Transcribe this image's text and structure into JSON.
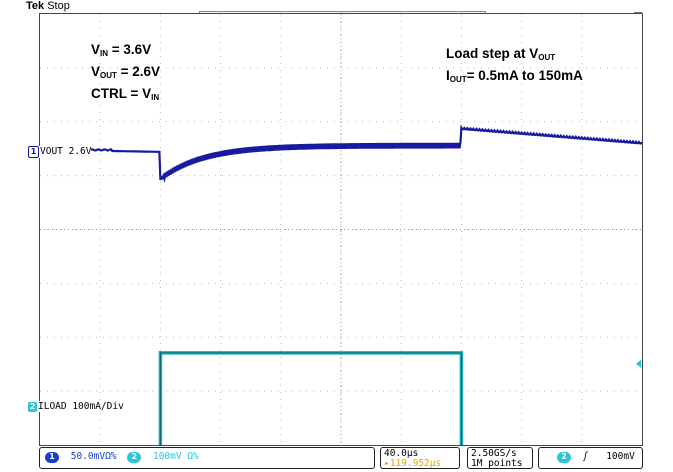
{
  "header": {
    "brand": "Tek",
    "acq_status": "Stop"
  },
  "annotations": {
    "vin_label": "V",
    "vin_sub": "IN",
    "vin_value": " = 3.6V",
    "vout_label": "V",
    "vout_sub": "OUT",
    "vout_value": " = 2.6V",
    "ctrl_label": "CTRL = V",
    "ctrl_sub": "IN",
    "step_label": "Load step at V",
    "step_sub": "OUT",
    "iout_label": "I",
    "iout_sub": "OUT",
    "iout_value": "= 0.5mA to 150mA"
  },
  "channels": {
    "ch1": {
      "num": "1",
      "label": "VOUT 2.6V",
      "color": "#1a1aa0"
    },
    "ch2": {
      "num": "2",
      "label": "ILOAD 100mA/Div",
      "color": "#1aa8b8"
    }
  },
  "statusbar": {
    "ch1_num": "1",
    "ch1_scale": "50.0mV",
    "ch1_coupling": "Ω%",
    "ch2_num": "2",
    "ch2_scale": "100mV",
    "ch2_coupling": "Ω%",
    "timebase": "40.0μs",
    "trigger_pos": "▸119.952μs",
    "sample_rate": "2.50GS/s",
    "record_length": "1M points",
    "trig_ch": "2",
    "trig_slope": "ʃ",
    "trig_level": "100mV"
  },
  "chart_data": {
    "type": "line",
    "title": "",
    "grid": true,
    "divisions": {
      "x": 10,
      "y": 8
    },
    "series": [
      {
        "name": "VOUT 2.6V",
        "color": "#1a1aa0",
        "description_points": [
          [
            0,
            0.0
          ],
          [
            1.2,
            0.0
          ],
          [
            2.0,
            -0.05
          ],
          [
            2.0,
            -0.4
          ],
          [
            2.2,
            -0.55
          ],
          [
            2.6,
            -0.3
          ],
          [
            3.0,
            -0.1
          ],
          [
            3.5,
            0.05
          ],
          [
            4.0,
            0.1
          ],
          [
            7.0,
            0.1
          ],
          [
            7.0,
            0.42
          ],
          [
            10.0,
            0.15
          ]
        ]
      },
      {
        "name": "ILOAD 100mA/Div",
        "color": "#1aa8b8",
        "description_points": [
          [
            0,
            -4.3
          ],
          [
            2.0,
            -4.3
          ],
          [
            2.0,
            -2.3
          ],
          [
            7.0,
            -2.3
          ],
          [
            7.0,
            -4.3
          ],
          [
            10.0,
            -4.3
          ]
        ]
      }
    ]
  }
}
